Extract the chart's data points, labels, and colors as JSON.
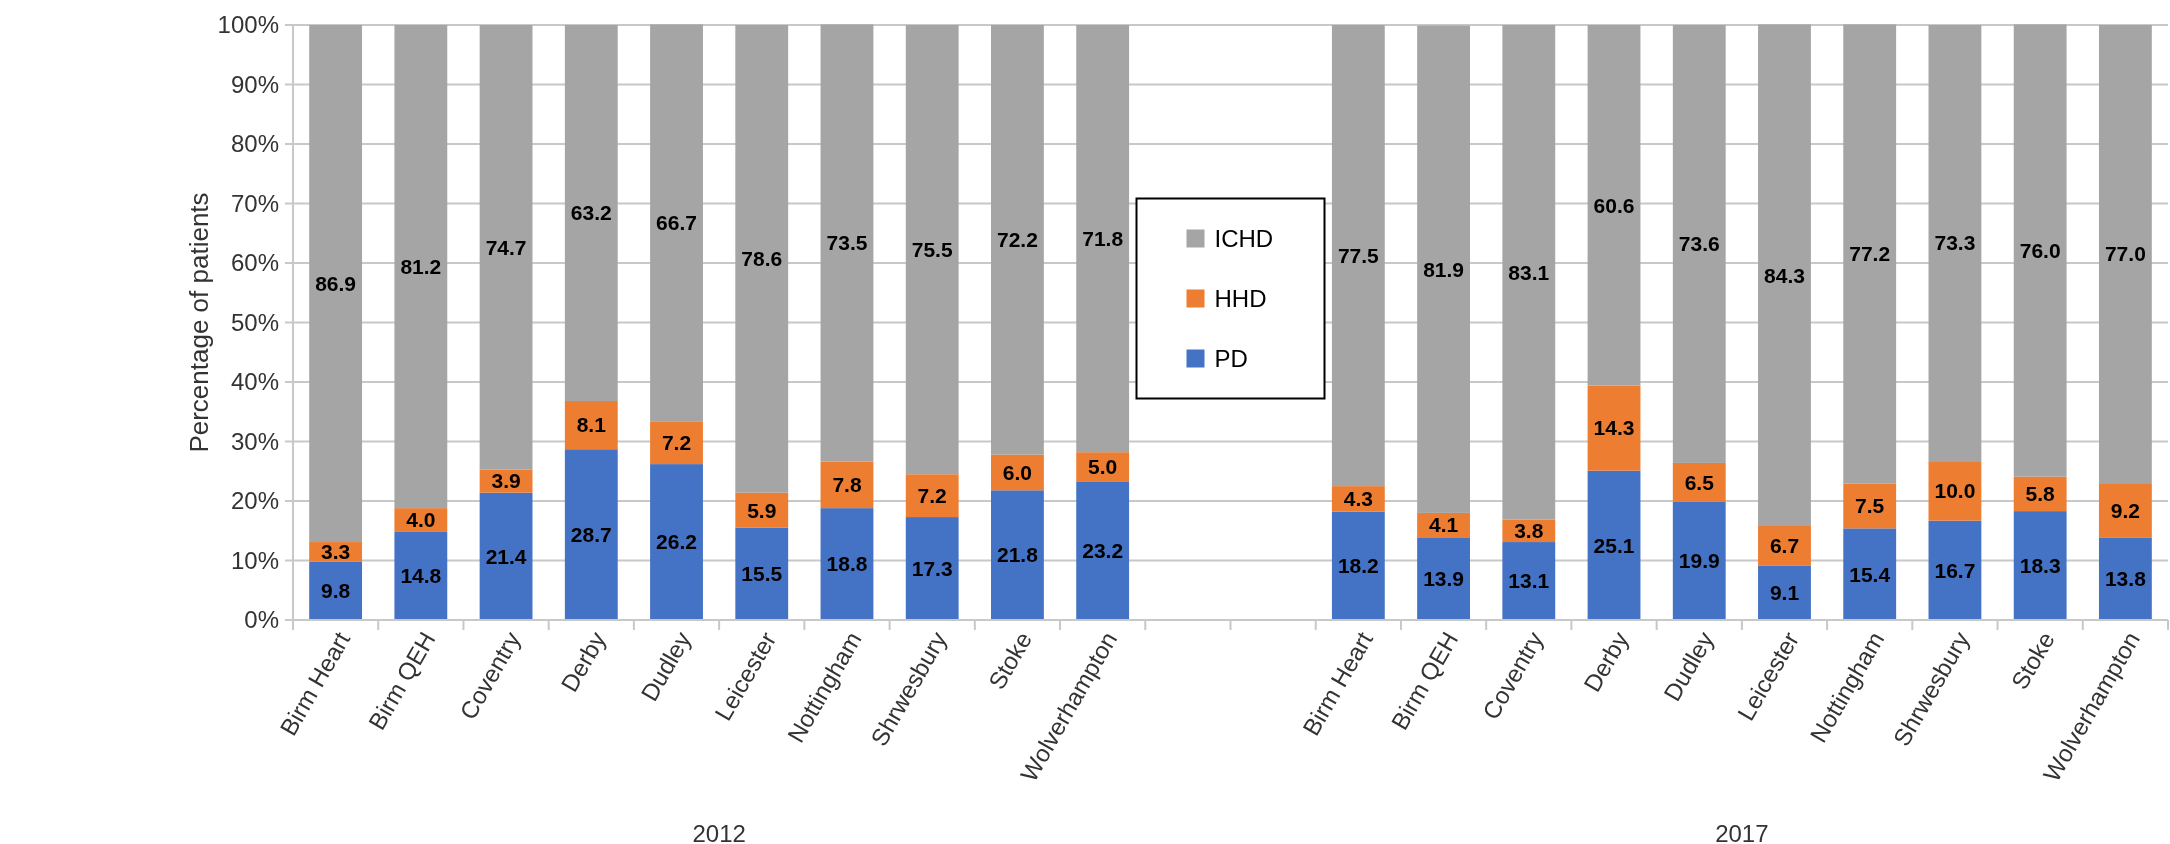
{
  "chart_data": {
    "type": "bar",
    "stacked": true,
    "ylabel": "Percentage of patients",
    "categories": [
      "Birm Heart",
      "Birm QEH",
      "Coventry",
      "Derby",
      "Dudley",
      "Leicester",
      "Nottingham",
      "Shrwesbury",
      "Stoke",
      "Wolverhampton",
      null,
      null,
      "Birm Heart",
      "Birm QEH",
      "Coventry",
      "Derby",
      "Dudley",
      "Leicester",
      "Nottingham",
      "Shrwesbury",
      "Stoke",
      "Wolverhampton"
    ],
    "series": [
      {
        "name": "PD",
        "color": "#4472c4",
        "values": [
          9.8,
          14.8,
          21.4,
          28.7,
          26.2,
          15.5,
          18.8,
          17.3,
          21.8,
          23.2,
          null,
          null,
          18.2,
          13.9,
          13.1,
          25.1,
          19.9,
          9.1,
          15.4,
          16.7,
          18.3,
          13.8
        ],
        "value_labels": [
          "9.8",
          "14.8",
          "21.4",
          "28.7",
          "26.2",
          "15.5",
          "18.8",
          "17.3",
          "21.8",
          "23.2",
          null,
          null,
          "18.2",
          "13.9",
          "13.1",
          "25.1",
          "19.9",
          "9.1",
          "15.4",
          "16.7",
          "18.3",
          "13.8"
        ]
      },
      {
        "name": "HHD",
        "color": "#ed7d31",
        "values": [
          3.3,
          4.0,
          3.9,
          8.1,
          7.2,
          5.9,
          7.8,
          7.2,
          6.0,
          5.0,
          null,
          null,
          4.3,
          4.1,
          3.8,
          14.3,
          6.5,
          6.7,
          7.5,
          10.0,
          5.8,
          9.2
        ],
        "value_labels": [
          "3.3",
          "4.0",
          "3.9",
          "8.1",
          "7.2",
          "5.9",
          "7.8",
          "7.2",
          "6.0",
          "5.0",
          null,
          null,
          "4.3",
          "4.1",
          "3.8",
          "14.3",
          "6.5",
          "6.7",
          "7.5",
          "10.0",
          "5.8",
          "9.2"
        ]
      },
      {
        "name": "ICHD",
        "color": "#a5a5a5",
        "values": [
          86.9,
          81.2,
          74.7,
          63.2,
          66.7,
          78.6,
          73.5,
          75.5,
          72.2,
          71.8,
          null,
          null,
          77.5,
          81.9,
          83.1,
          60.6,
          73.6,
          84.3,
          77.2,
          73.3,
          76.0,
          77.0
        ],
        "value_labels": [
          "86.9",
          "81.2",
          "74.7",
          "63.2",
          "66.7",
          "78.6",
          "73.5",
          "75.5",
          "72.2",
          "71.8",
          null,
          null,
          "77.5",
          "81.9",
          "83.1",
          "60.6",
          "73.6",
          "84.3",
          "77.2",
          "73.3",
          "76.0",
          "77.0"
        ]
      }
    ],
    "ylim": [
      0,
      100
    ],
    "yticks": [
      {
        "value": 0,
        "label": "0%"
      },
      {
        "value": 10,
        "label": "10%"
      },
      {
        "value": 20,
        "label": "20%"
      },
      {
        "value": 30,
        "label": "30%"
      },
      {
        "value": 40,
        "label": "40%"
      },
      {
        "value": 50,
        "label": "50%"
      },
      {
        "value": 60,
        "label": "60%"
      },
      {
        "value": 70,
        "label": "70%"
      },
      {
        "value": 80,
        "label": "80%"
      },
      {
        "value": 90,
        "label": "90%"
      },
      {
        "value": 100,
        "label": "100%"
      }
    ],
    "grid": "y",
    "legend": "top",
    "annotations": [
      "2012",
      "2017"
    ]
  }
}
